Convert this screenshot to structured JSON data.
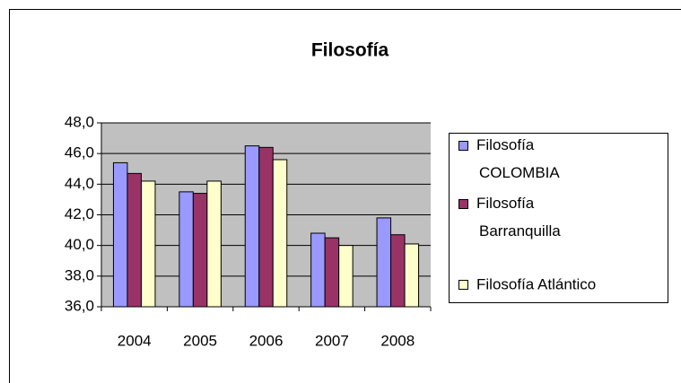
{
  "chart_data": {
    "type": "bar",
    "title": "Filosofía",
    "categories": [
      "2004",
      "2005",
      "2006",
      "2007",
      "2008"
    ],
    "series": [
      {
        "name": "Filosofía COLOMBIA",
        "color": "#9999ff",
        "values": [
          45.4,
          43.5,
          46.5,
          40.8,
          41.8
        ]
      },
      {
        "name": "Filosofía Barranquilla",
        "color": "#993366",
        "values": [
          44.7,
          43.4,
          46.4,
          40.5,
          40.7
        ]
      },
      {
        "name": "Filosofía Atlántico",
        "color": "#ffffcc",
        "values": [
          44.2,
          44.2,
          45.6,
          40.0,
          40.1
        ]
      }
    ],
    "ylim": [
      36,
      48
    ],
    "yticks": [
      {
        "value": 36,
        "label": "36,0"
      },
      {
        "value": 38,
        "label": "38,0"
      },
      {
        "value": 40,
        "label": "40,0"
      },
      {
        "value": 42,
        "label": "42,0"
      },
      {
        "value": 44,
        "label": "44,0"
      },
      {
        "value": 46,
        "label": "46,0"
      },
      {
        "value": 48,
        "label": "48,0"
      }
    ],
    "grid": true,
    "legend": "right"
  }
}
